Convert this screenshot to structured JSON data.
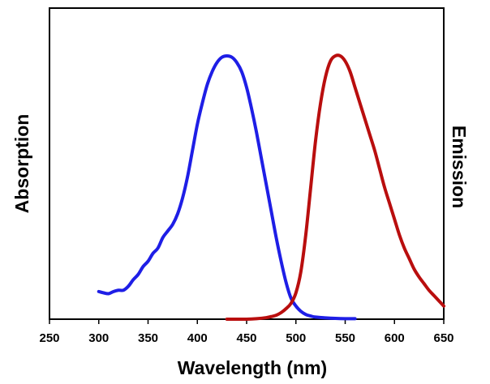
{
  "chart_data": {
    "type": "line",
    "title": "",
    "xlabel": "Wavelength (nm)",
    "ylabel_left": "Absorption",
    "ylabel_right": "Emission",
    "xlim": [
      250,
      650
    ],
    "ylim": [
      0,
      1.0
    ],
    "x_ticks": [
      "250",
      "300",
      "350",
      "400",
      "450",
      "500",
      "550",
      "600",
      "650"
    ],
    "grid": false,
    "legend": "none",
    "series": [
      {
        "color": "#1e1ee6",
        "axis": "left",
        "x": [
          300,
          305,
          310,
          315,
          320,
          325,
          330,
          335,
          340,
          345,
          350,
          355,
          360,
          365,
          370,
          375,
          380,
          385,
          390,
          395,
          400,
          405,
          410,
          415,
          420,
          425,
          430,
          435,
          440,
          445,
          450,
          455,
          460,
          465,
          470,
          475,
          480,
          485,
          490,
          495,
          500,
          505,
          510,
          515,
          520,
          530,
          540,
          550,
          560
        ],
        "y": [
          0.105,
          0.1,
          0.097,
          0.105,
          0.11,
          0.11,
          0.125,
          0.15,
          0.17,
          0.2,
          0.22,
          0.25,
          0.27,
          0.31,
          0.335,
          0.36,
          0.4,
          0.46,
          0.54,
          0.64,
          0.74,
          0.82,
          0.89,
          0.94,
          0.975,
          0.995,
          1.0,
          0.995,
          0.975,
          0.94,
          0.88,
          0.8,
          0.71,
          0.61,
          0.51,
          0.41,
          0.31,
          0.22,
          0.14,
          0.08,
          0.05,
          0.03,
          0.018,
          0.012,
          0.008,
          0.005,
          0.003,
          0.002,
          0.002
        ]
      },
      {
        "color": "#b90e0e",
        "axis": "right",
        "x": [
          430,
          440,
          450,
          460,
          470,
          475,
          480,
          485,
          490,
          495,
          500,
          505,
          510,
          515,
          520,
          525,
          530,
          535,
          540,
          545,
          550,
          555,
          560,
          565,
          570,
          575,
          580,
          585,
          590,
          595,
          600,
          605,
          610,
          615,
          620,
          625,
          630,
          635,
          640,
          645,
          650
        ],
        "y": [
          0.0,
          0.0,
          0.0,
          0.002,
          0.006,
          0.01,
          0.015,
          0.025,
          0.04,
          0.06,
          0.1,
          0.18,
          0.32,
          0.5,
          0.68,
          0.82,
          0.92,
          0.98,
          1.0,
          1.0,
          0.98,
          0.94,
          0.88,
          0.82,
          0.76,
          0.7,
          0.64,
          0.57,
          0.5,
          0.44,
          0.38,
          0.32,
          0.27,
          0.23,
          0.19,
          0.16,
          0.135,
          0.11,
          0.09,
          0.07,
          0.05
        ]
      }
    ]
  }
}
